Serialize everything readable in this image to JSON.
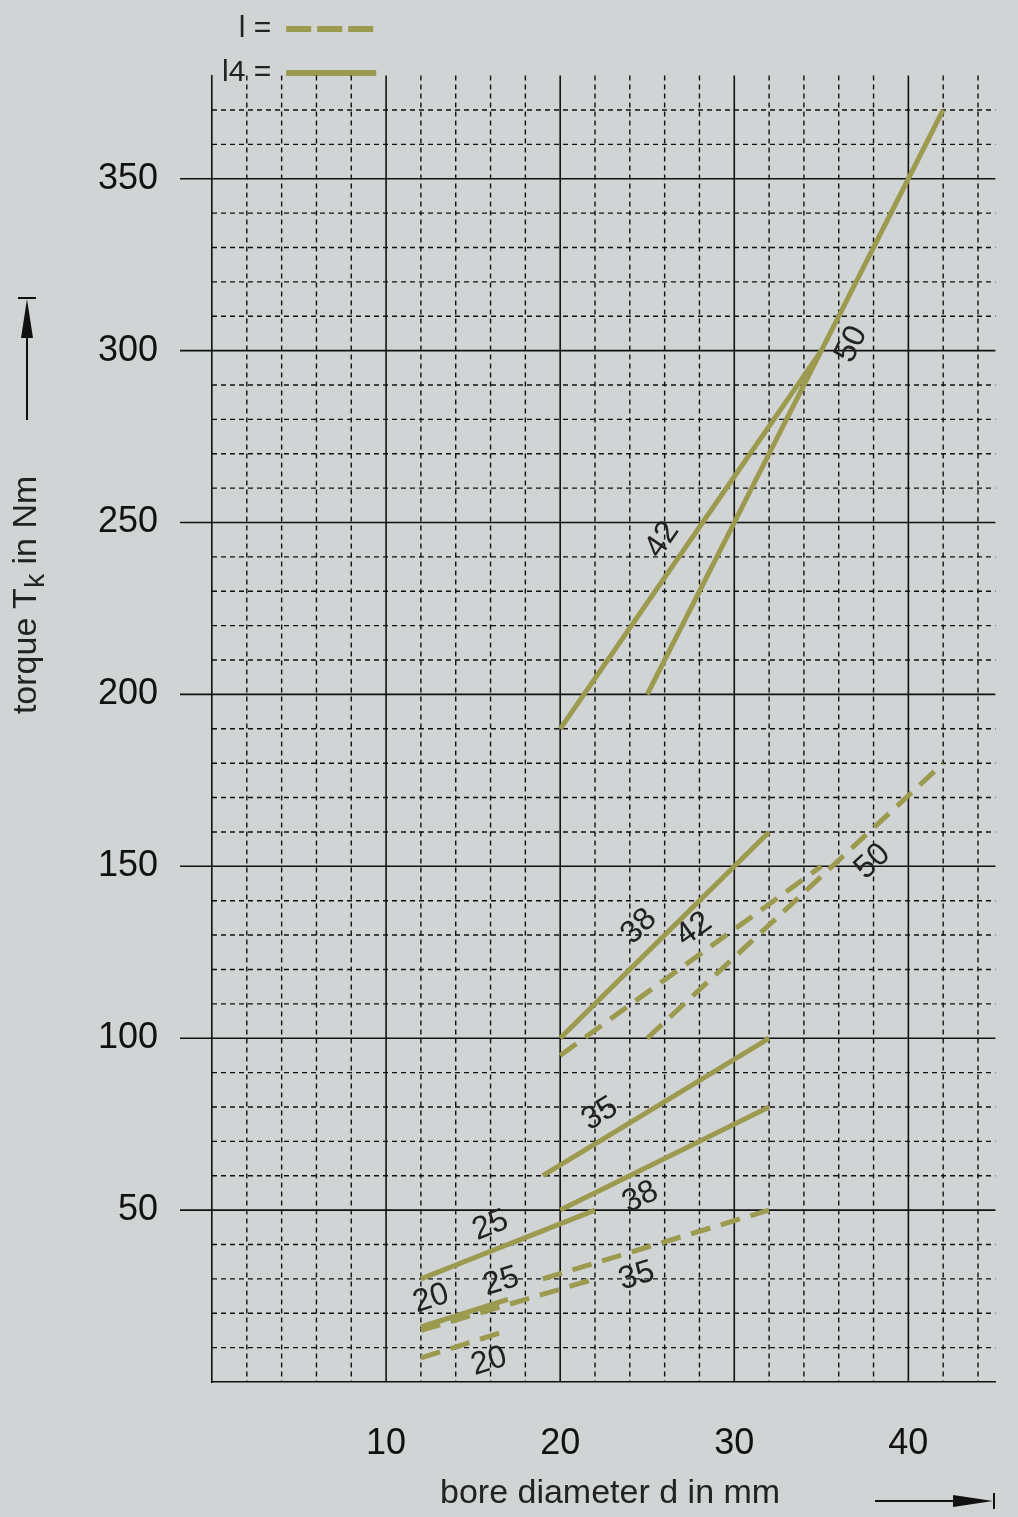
{
  "chart_data": {
    "type": "line",
    "xlabel": "bore diameter d in mm",
    "ylabel": "torque T$_{k}$ in Nm",
    "xlim": [
      0,
      45
    ],
    "ylim": [
      0,
      380
    ],
    "xticks": [
      {
        "value": 2,
        "label": null
      },
      {
        "value": 4,
        "label": null
      },
      {
        "value": 6,
        "label": null
      },
      {
        "value": 8,
        "label": null
      },
      10,
      {
        "value": 12,
        "label": null
      },
      {
        "value": 14,
        "label": null
      },
      {
        "value": 16,
        "label": null
      },
      {
        "value": 18,
        "label": null
      },
      20,
      {
        "value": 22,
        "label": null
      },
      {
        "value": 24,
        "label": null
      },
      {
        "value": 26,
        "label": null
      },
      {
        "value": 28,
        "label": null
      },
      30,
      {
        "value": 32,
        "label": null
      },
      {
        "value": 34,
        "label": null
      },
      {
        "value": 36,
        "label": null
      },
      {
        "value": 38,
        "label": null
      },
      40,
      {
        "value": 42,
        "label": null
      },
      {
        "value": 44,
        "label": null
      }
    ],
    "yticks": [
      {
        "value": 10,
        "label": null
      },
      {
        "value": 20,
        "label": null
      },
      {
        "value": 30,
        "label": null
      },
      {
        "value": 40,
        "label": null
      },
      50,
      {
        "value": 60,
        "label": null
      },
      {
        "value": 70,
        "label": null
      },
      {
        "value": 80,
        "label": null
      },
      {
        "value": 90,
        "label": null
      },
      100,
      {
        "value": 110,
        "label": null
      },
      {
        "value": 120,
        "label": null
      },
      {
        "value": 130,
        "label": null
      },
      {
        "value": 140,
        "label": null
      },
      150,
      {
        "value": 160,
        "label": null
      },
      {
        "value": 170,
        "label": null
      },
      {
        "value": 180,
        "label": null
      },
      {
        "value": 190,
        "label": null
      },
      200,
      {
        "value": 210,
        "label": null
      },
      {
        "value": 220,
        "label": null
      },
      {
        "value": 230,
        "label": null
      },
      {
        "value": 240,
        "label": null
      },
      250,
      {
        "value": 260,
        "label": null
      },
      {
        "value": 270,
        "label": null
      },
      {
        "value": 280,
        "label": null
      },
      {
        "value": 290,
        "label": null
      },
      300,
      {
        "value": 310,
        "label": null
      },
      {
        "value": 320,
        "label": null
      },
      {
        "value": 330,
        "label": null
      },
      {
        "value": 340,
        "label": null
      },
      350,
      {
        "value": 360,
        "label": null
      },
      {
        "value": 370,
        "label": null
      }
    ],
    "grid": true,
    "legend": "top left",
    "series": [
      {
        "name": "l =",
        "color": "#9b9a4f",
        "line_style": "dashed",
        "x": [
          12,
          17
        ],
        "values": [
          7,
          15
        ]
      },
      {
        "name": "l4 =",
        "color": "#9b9a4f",
        "line_style": "solid",
        "x": [
          12,
          17
        ],
        "values": [
          16,
          24
        ]
      },
      {
        "color": "#9b9a4f",
        "line_style": "dashed",
        "x": [
          12,
          22
        ],
        "values": [
          15,
          30
        ]
      },
      {
        "color": "#9b9a4f",
        "line_style": "solid",
        "x": [
          12,
          22
        ],
        "values": [
          30,
          50
        ]
      },
      {
        "color": "#9b9a4f",
        "line_style": "dashed",
        "x": [
          19,
          32
        ],
        "values": [
          30,
          50
        ]
      },
      {
        "color": "#9b9a4f",
        "line_style": "solid",
        "x": [
          19,
          32
        ],
        "values": [
          60,
          100
        ]
      },
      {
        "color": "#9b9a4f",
        "line_style": "solid",
        "x": [
          20,
          32
        ],
        "values": [
          50,
          80
        ]
      },
      {
        "color": "#9b9a4f",
        "line_style": "solid",
        "x": [
          20,
          32
        ],
        "values": [
          100,
          160
        ]
      },
      {
        "color": "#9b9a4f",
        "line_style": "dashed",
        "x": [
          20,
          35
        ],
        "values": [
          95,
          150
        ]
      },
      {
        "color": "#9b9a4f",
        "line_style": "dashed",
        "x": [
          25,
          42
        ],
        "values": [
          100,
          180
        ]
      },
      {
        "color": "#9b9a4f",
        "line_style": "solid",
        "x": [
          20,
          35
        ],
        "values": [
          190,
          300
        ]
      },
      {
        "color": "#9b9a4f",
        "line_style": "solid",
        "x": [
          25,
          42
        ],
        "values": [
          200,
          370
        ]
      }
    ],
    "annotations": [
      {
        "text": "50",
        "x": 35.5,
        "y": 305
      },
      {
        "text": "42",
        "x": 27,
        "y": 241
      },
      {
        "text": "38",
        "x": 25.5,
        "y": 127.5
      },
      {
        "text": "42",
        "x": 28.5,
        "y": 126
      },
      {
        "text": "50",
        "x": 37,
        "y": 156.5
      },
      {
        "text": "35",
        "x": 23,
        "y": 72
      },
      {
        "text": "38",
        "x": 24,
        "y": 60
      },
      {
        "text": "25",
        "x": 16.5,
        "y": 39
      },
      {
        "text": "35",
        "x": 24,
        "y": 37.5
      },
      {
        "text": "25",
        "x": 17,
        "y": 22.5
      },
      {
        "text": "20",
        "x": 13,
        "y": 17.6
      },
      {
        "text": "20",
        "x": 15.5,
        "y": 12.6
      }
    ]
  }
}
